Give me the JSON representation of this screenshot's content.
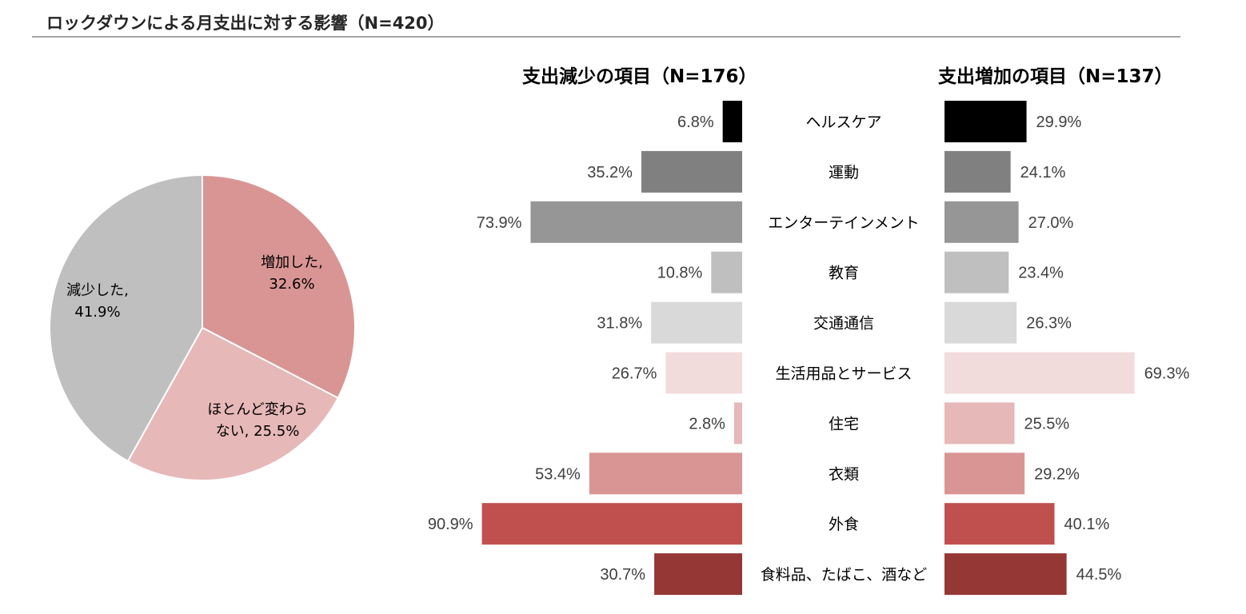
{
  "page": {
    "title": "ロックダウンによる月支出に対する影響（N=420）"
  },
  "chart_data": [
    {
      "type": "pie",
      "slices": [
        {
          "label_lines": [
            "増加した,",
            "32.6%"
          ],
          "name": "増加した",
          "value": 32.6,
          "color": "#d99594"
        },
        {
          "label_lines": [
            "ほとんど変わら",
            "ない, 25.5%"
          ],
          "name": "ほとんど変わらない",
          "value": 25.5,
          "color": "#e6b8b7"
        },
        {
          "label_lines": [
            "減少した,",
            "41.9%"
          ],
          "name": "減少した",
          "value": 41.9,
          "color": "#bfbfbf"
        }
      ]
    },
    {
      "type": "bar",
      "title": "支出減少の項目（N=176）",
      "orientation": "horizontal",
      "direction": "leftward",
      "categories": [
        "ヘルスケア",
        "運動",
        "エンターテインメント",
        "教育",
        "交通通信",
        "生活用品とサービス",
        "住宅",
        "衣類",
        "外食",
        "食料品、たばこ、酒など"
      ],
      "values": [
        6.8,
        35.2,
        73.9,
        10.8,
        31.8,
        26.7,
        2.8,
        53.4,
        90.9,
        30.7
      ],
      "value_labels": [
        "6.8%",
        "35.2%",
        "73.9%",
        "10.8%",
        "31.8%",
        "26.7%",
        "2.8%",
        "53.4%",
        "90.9%",
        "30.7%"
      ],
      "unit": "%"
    },
    {
      "type": "bar",
      "title": "支出増加の項目（N=137）",
      "orientation": "horizontal",
      "direction": "rightward",
      "categories": [
        "ヘルスケア",
        "運動",
        "エンターテインメント",
        "教育",
        "交通通信",
        "生活用品とサービス",
        "住宅",
        "衣類",
        "外食",
        "食料品、たばこ、酒など"
      ],
      "values": [
        29.9,
        24.1,
        27.0,
        23.4,
        26.3,
        69.3,
        25.5,
        29.2,
        40.1,
        44.5
      ],
      "value_labels": [
        "29.9%",
        "24.1%",
        "27.0%",
        "23.4%",
        "26.3%",
        "69.3%",
        "25.5%",
        "29.2%",
        "40.1%",
        "44.5%"
      ],
      "unit": "%"
    }
  ],
  "bar_colors": [
    "#000000",
    "#808080",
    "#969696",
    "#bfbfbf",
    "#d9d9d9",
    "#f2dcdb",
    "#e6b8b7",
    "#d99594",
    "#c0504d",
    "#953735"
  ]
}
